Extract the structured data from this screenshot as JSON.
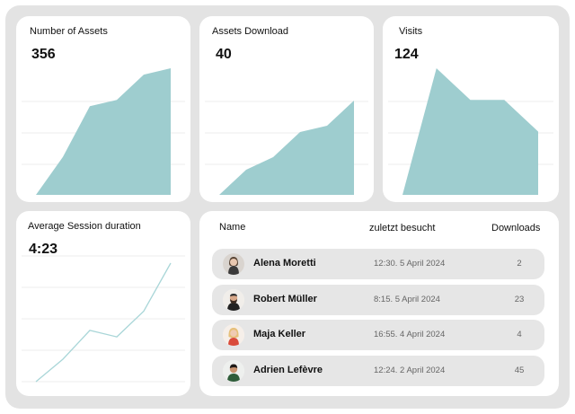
{
  "colors": {
    "background": "#e3e3e3",
    "card": "#ffffff",
    "area_fill": "#9ecdcf",
    "line_stroke": "#a9d6d8",
    "row_bg": "#e6e6e6"
  },
  "cards": {
    "assets": {
      "title": "Number of Assets",
      "value": "356"
    },
    "downloads": {
      "title": "Assets Download",
      "value": "40"
    },
    "visits": {
      "title": "Visits",
      "value": "124"
    },
    "session": {
      "title": "Average Session duration",
      "value": "4:23"
    }
  },
  "chart_data": [
    {
      "type": "area",
      "name": "assets",
      "x": [
        0,
        1,
        2,
        3,
        4,
        5
      ],
      "values": [
        0,
        12,
        28,
        30,
        38,
        40
      ],
      "ylim": [
        0,
        45
      ],
      "grid": true
    },
    {
      "type": "area",
      "name": "downloads",
      "x": [
        0,
        1,
        2,
        3,
        4,
        5
      ],
      "values": [
        0,
        8,
        12,
        20,
        22,
        30
      ],
      "ylim": [
        0,
        35
      ],
      "grid": true
    },
    {
      "type": "area",
      "name": "visits",
      "x": [
        0,
        1,
        2,
        3,
        4
      ],
      "values": [
        0,
        40,
        30,
        30,
        20
      ],
      "ylim": [
        0,
        45
      ],
      "grid": true
    },
    {
      "type": "line",
      "name": "session",
      "x": [
        0,
        1,
        2,
        3,
        4,
        5
      ],
      "values": [
        0,
        7,
        16,
        14,
        22,
        37
      ],
      "ylim": [
        0,
        40
      ],
      "grid": true
    }
  ],
  "table": {
    "headers": {
      "name": "Name",
      "visited": "zuletzt besucht",
      "downloads": "Downloads"
    },
    "rows": [
      {
        "name": "Alena Moretti",
        "visited": "12:30. 5 April 2024",
        "downloads": "2",
        "avatar_icon": "woman-avatar-icon"
      },
      {
        "name": "Robert Müller",
        "visited": "8:15. 5 April 2024",
        "downloads": "23",
        "avatar_icon": "bearded-man-avatar-icon"
      },
      {
        "name": "Maja Keller",
        "visited": "16:55. 4 April 2024",
        "downloads": "4",
        "avatar_icon": "blonde-woman-avatar-icon"
      },
      {
        "name": "Adrien Lefèvre",
        "visited": "12:24. 2 April 2024",
        "downloads": "45",
        "avatar_icon": "man-avatar-icon"
      }
    ]
  }
}
